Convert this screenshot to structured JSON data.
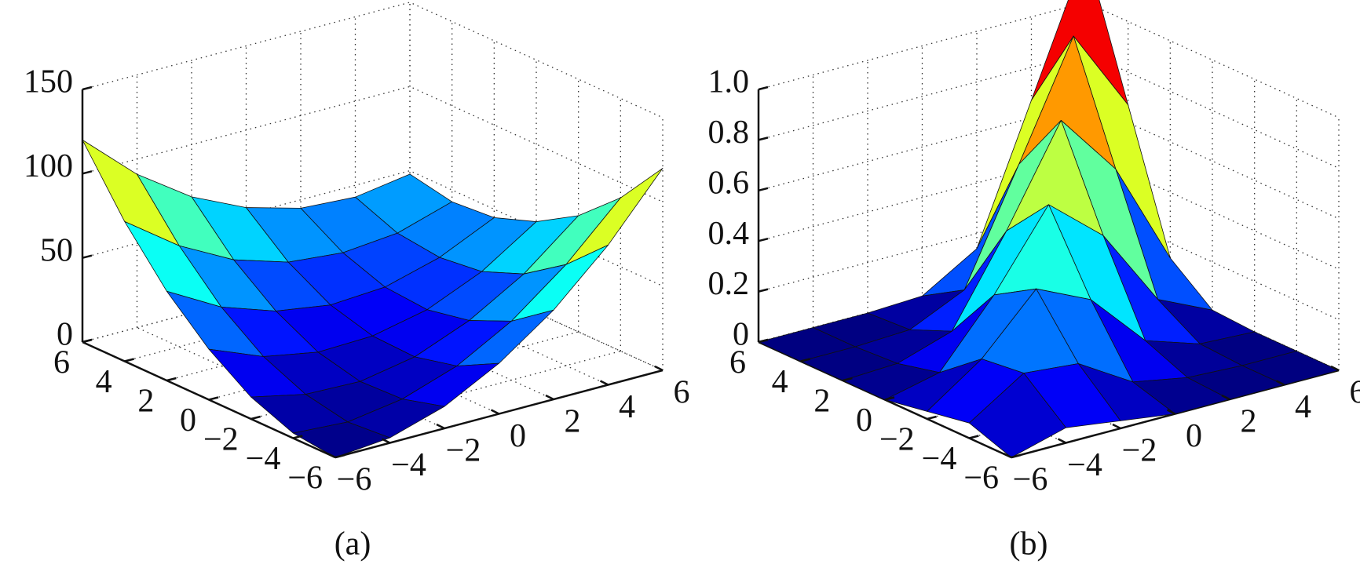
{
  "chart_data": [
    {
      "type": "surface",
      "caption": "(a)",
      "x": [
        -6,
        -4,
        -2,
        0,
        2,
        4,
        6
      ],
      "y": [
        -6,
        -4,
        -2,
        0,
        2,
        4,
        6
      ],
      "z": [
        [
          0,
          3,
          13,
          30,
          53,
          83,
          120
        ],
        [
          3,
          1,
          6,
          17,
          35,
          60,
          91
        ],
        [
          13,
          6,
          5,
          11,
          24,
          43,
          69
        ],
        [
          30,
          17,
          11,
          12,
          19,
          33,
          54
        ],
        [
          53,
          35,
          24,
          19,
          21,
          30,
          45
        ],
        [
          83,
          60,
          43,
          33,
          30,
          33,
          43
        ],
        [
          120,
          91,
          69,
          54,
          45,
          43,
          48
        ]
      ],
      "xlim": [
        -6,
        6
      ],
      "ylim": [
        -6,
        6
      ],
      "zlim": [
        0,
        150
      ],
      "xticks": [
        {
          "value": -6,
          "label": "−6"
        },
        {
          "value": -4,
          "label": "−4"
        },
        {
          "value": -2,
          "label": "−2"
        },
        0,
        2,
        4,
        6
      ],
      "yticks": [
        {
          "value": -6,
          "label": "−6"
        },
        {
          "value": -4,
          "label": "−4"
        },
        {
          "value": -2,
          "label": "−2"
        },
        0,
        2,
        4,
        6
      ],
      "zticks": [
        0,
        50,
        100,
        150
      ],
      "grid": true
    },
    {
      "type": "surface",
      "caption": "(b)",
      "x": [
        -6,
        -4,
        -2,
        0,
        2,
        4,
        6
      ],
      "y": [
        -6,
        -4,
        -2,
        0,
        2,
        4,
        6
      ],
      "z": [
        [
          0,
          0.06,
          0.03,
          0,
          0,
          0,
          0
        ],
        [
          0.06,
          0.2,
          0.18,
          0.05,
          0.01,
          0,
          0
        ],
        [
          0.03,
          0.18,
          0.4,
          0.3,
          0.08,
          0.01,
          0
        ],
        [
          0,
          0.05,
          0.3,
          0.6,
          0.42,
          0.11,
          0.01
        ],
        [
          0,
          0.01,
          0.08,
          0.42,
          0.8,
          0.55,
          0.14
        ],
        [
          0,
          0,
          0.01,
          0.11,
          0.55,
          1.0,
          0.67
        ],
        [
          0,
          0,
          0,
          0.01,
          0.14,
          0.67,
          1.2
        ]
      ],
      "xlim": [
        -6,
        6
      ],
      "ylim": [
        -6,
        6
      ],
      "zlim": [
        0,
        1
      ],
      "xticks": [
        {
          "value": -6,
          "label": "−6"
        },
        {
          "value": -4,
          "label": "−4"
        },
        {
          "value": -2,
          "label": "−2"
        },
        0,
        2,
        4,
        6
      ],
      "yticks": [
        {
          "value": -6,
          "label": "−6"
        },
        {
          "value": -4,
          "label": "−4"
        },
        {
          "value": -2,
          "label": "−2"
        },
        0,
        2,
        4,
        6
      ],
      "zticks": [
        0,
        0.2,
        0.4,
        0.6,
        0.8,
        {
          "value": 1,
          "label": "1.0"
        }
      ],
      "grid": true
    }
  ]
}
